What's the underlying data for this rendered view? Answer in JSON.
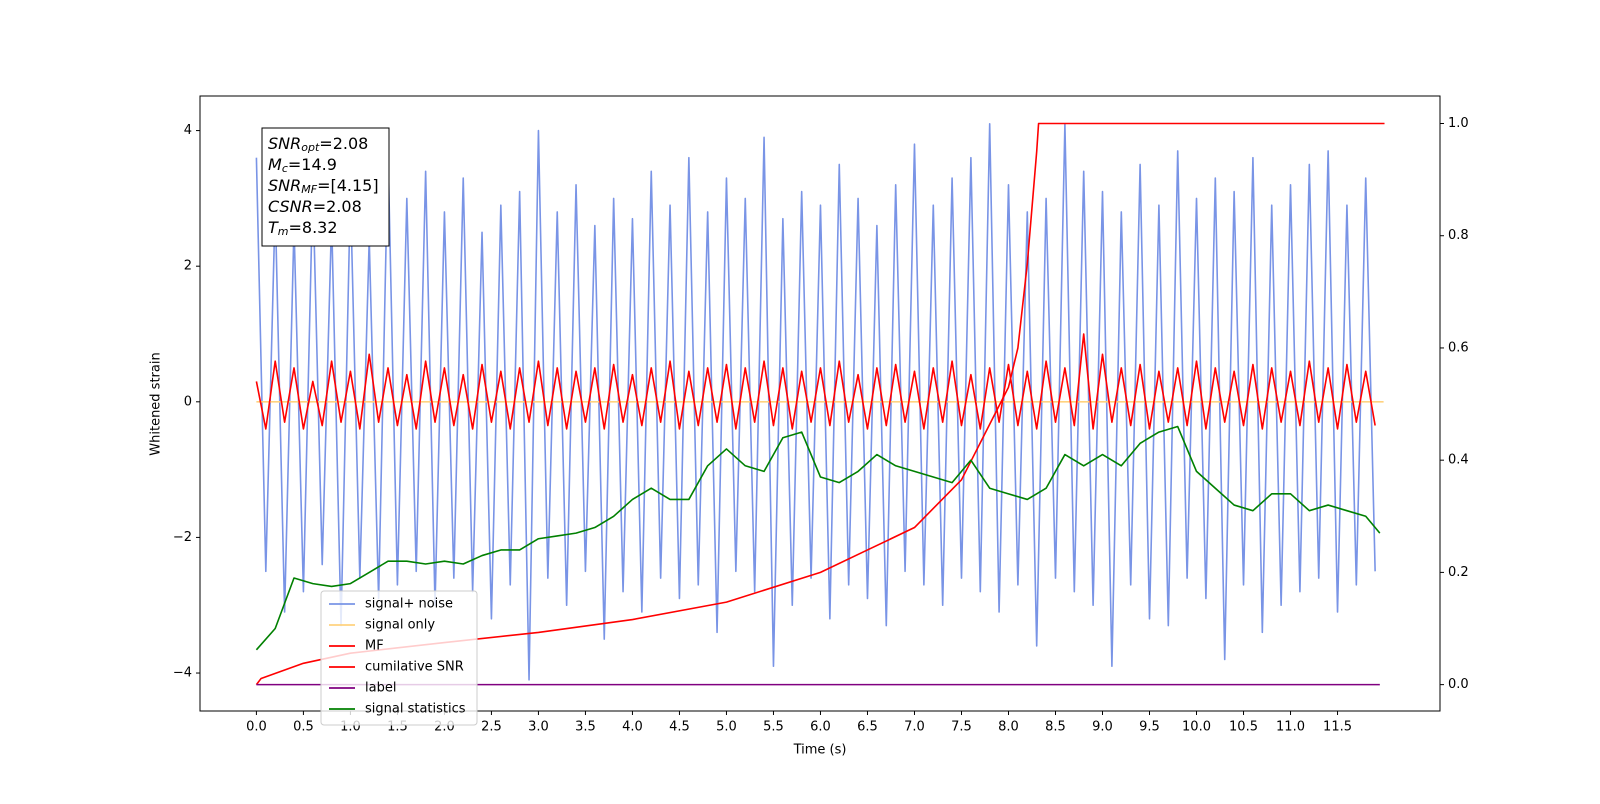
{
  "chart_data": {
    "type": "line",
    "xlabel": "Time (s)",
    "ylabel": "Whitened strain",
    "xlim": [
      -0.6,
      12.59
    ],
    "ylim": [
      -4.56,
      4.51
    ],
    "y2lim": [
      -0.047,
      1.049
    ],
    "xticks": [
      {
        "value": 0,
        "label": "0.0"
      },
      {
        "value": 0.5,
        "label": "0.5"
      },
      {
        "value": 1,
        "label": "1.0"
      },
      {
        "value": 1.5,
        "label": "1.5"
      },
      {
        "value": 2,
        "label": "2.0"
      },
      {
        "value": 2.5,
        "label": "2.5"
      },
      {
        "value": 3,
        "label": "3.0"
      },
      {
        "value": 3.5,
        "label": "3.5"
      },
      {
        "value": 4,
        "label": "4.0"
      },
      {
        "value": 4.5,
        "label": "4.5"
      },
      {
        "value": 5,
        "label": "5.0"
      },
      {
        "value": 5.5,
        "label": "5.5"
      },
      {
        "value": 6,
        "label": "6.0"
      },
      {
        "value": 6.5,
        "label": "6.5"
      },
      {
        "value": 7,
        "label": "7.0"
      },
      {
        "value": 7.5,
        "label": "7.5"
      },
      {
        "value": 8,
        "label": "8.0"
      },
      {
        "value": 8.5,
        "label": "8.5"
      },
      {
        "value": 9,
        "label": "9.0"
      },
      {
        "value": 9.5,
        "label": "9.5"
      },
      {
        "value": 10,
        "label": "10.0"
      },
      {
        "value": 10.5,
        "label": "10.5"
      },
      {
        "value": 11,
        "label": "11.0"
      },
      {
        "value": 11.5,
        "label": "11.5"
      }
    ],
    "yticks": [
      {
        "value": -4,
        "label": "−4"
      },
      {
        "value": -2,
        "label": "−2"
      },
      0,
      2,
      4
    ],
    "y2ticks": [
      {
        "value": 0,
        "label": "0.0"
      },
      {
        "value": 0.2,
        "label": "0.2"
      },
      {
        "value": 0.4,
        "label": "0.4"
      },
      {
        "value": 0.6,
        "label": "0.6"
      },
      {
        "value": 0.8,
        "label": "0.8"
      },
      {
        "value": 1,
        "label": "1.0"
      }
    ],
    "legend": "lower left",
    "annotation": [
      {
        "symbol": "SNR",
        "sub": "opt",
        "text": "=2.08"
      },
      {
        "symbol": "M",
        "sub": "c",
        "text": "=14.9"
      },
      {
        "symbol": "SNR",
        "sub": "MF",
        "text": "=[4.15]"
      },
      {
        "symbol": "CSNR",
        "text": "=2.08"
      },
      {
        "symbol": "T",
        "sub": "m",
        "text": "=8.32"
      }
    ],
    "x": [
      0,
      0.1,
      0.2,
      0.3,
      0.4,
      0.5,
      0.6,
      0.7,
      0.8,
      0.9,
      1,
      1.1,
      1.2,
      1.3,
      1.4,
      1.5,
      1.6,
      1.7,
      1.8,
      1.9,
      2,
      2.1,
      2.2,
      2.3,
      2.4,
      2.5,
      2.6,
      2.7,
      2.8,
      2.9,
      3,
      3.1,
      3.2,
      3.3,
      3.4,
      3.5,
      3.6,
      3.7,
      3.8,
      3.9,
      4,
      4.1,
      4.2,
      4.3,
      4.4,
      4.5,
      4.6,
      4.7,
      4.8,
      4.9,
      5,
      5.1,
      5.2,
      5.3,
      5.4,
      5.5,
      5.6,
      5.7,
      5.8,
      5.9,
      6,
      6.1,
      6.2,
      6.3,
      6.4,
      6.5,
      6.6,
      6.7,
      6.8,
      6.9,
      7,
      7.1,
      7.2,
      7.3,
      7.4,
      7.5,
      7.6,
      7.7,
      7.8,
      7.9,
      8,
      8.1,
      8.2,
      8.3,
      8.4,
      8.5,
      8.6,
      8.7,
      8.8,
      8.9,
      9,
      9.1,
      9.2,
      9.3,
      9.4,
      9.5,
      9.6,
      9.7,
      9.8,
      9.9,
      10,
      10.1,
      10.2,
      10.3,
      10.4,
      10.5,
      10.6,
      10.7,
      10.8,
      10.9,
      11,
      11.1,
      11.2,
      11.3,
      11.4,
      11.5,
      11.6,
      11.7,
      11.8,
      11.9
    ],
    "series": [
      {
        "name": "signal+ noise",
        "color": "#7994e6",
        "values": [
          3.6,
          -2.5,
          2.9,
          -3.1,
          2.6,
          -2.8,
          3.2,
          -2.4,
          2.7,
          -3.3,
          3.1,
          -2.6,
          2.4,
          -2.9,
          3.7,
          -2.7,
          3.0,
          -2.5,
          3.4,
          -3.0,
          2.8,
          -2.6,
          3.3,
          -2.8,
          2.5,
          -3.2,
          2.9,
          -2.7,
          3.1,
          -4.1,
          4.0,
          -2.6,
          2.8,
          -3.0,
          3.2,
          -2.5,
          2.6,
          -3.5,
          3.0,
          -2.8,
          2.7,
          -3.1,
          3.4,
          -2.6,
          2.9,
          -2.9,
          3.6,
          -2.7,
          2.8,
          -3.4,
          3.3,
          -2.5,
          3.0,
          -2.8,
          3.9,
          -3.9,
          2.7,
          -3.0,
          3.1,
          -2.6,
          2.9,
          -3.2,
          3.5,
          -2.7,
          3.0,
          -2.9,
          2.6,
          -3.3,
          3.2,
          -2.5,
          3.8,
          -2.7,
          2.9,
          -3.0,
          3.3,
          -2.6,
          3.6,
          -2.8,
          4.1,
          -3.1,
          3.2,
          -2.7,
          2.8,
          -3.6,
          3.0,
          -2.6,
          4.1,
          -2.8,
          3.4,
          -3.0,
          3.1,
          -3.9,
          2.8,
          -2.7,
          3.5,
          -3.2,
          2.9,
          -3.3,
          3.7,
          -2.6,
          3.0,
          -2.9,
          3.3,
          -3.8,
          3.1,
          -2.7,
          3.6,
          -3.4,
          2.9,
          -3.0,
          3.2,
          -2.8,
          3.5,
          -2.6,
          3.7,
          -3.1,
          2.9,
          -2.7,
          3.3,
          -2.5
        ]
      },
      {
        "name": "signal only",
        "color": "#ffd27f",
        "x": [
          0,
          11.99
        ],
        "values": [
          0,
          0
        ]
      },
      {
        "name": "MF",
        "color": "#ff0000",
        "values": [
          0.3,
          -0.4,
          0.6,
          -0.3,
          0.5,
          -0.4,
          0.3,
          -0.35,
          0.6,
          -0.3,
          0.45,
          -0.4,
          0.7,
          -0.3,
          0.5,
          -0.35,
          0.4,
          -0.4,
          0.6,
          -0.3,
          0.5,
          -0.35,
          0.4,
          -0.4,
          0.55,
          -0.3,
          0.45,
          -0.4,
          0.5,
          -0.3,
          0.6,
          -0.35,
          0.5,
          -0.4,
          0.45,
          -0.3,
          0.5,
          -0.4,
          0.55,
          -0.3,
          0.4,
          -0.35,
          0.5,
          -0.3,
          0.6,
          -0.4,
          0.45,
          -0.35,
          0.5,
          -0.3,
          0.55,
          -0.4,
          0.5,
          -0.3,
          0.6,
          -0.35,
          0.5,
          -0.4,
          0.45,
          -0.3,
          0.5,
          -0.35,
          0.6,
          -0.3,
          0.4,
          -0.4,
          0.5,
          -0.35,
          0.55,
          -0.3,
          0.45,
          -0.4,
          0.5,
          -0.3,
          0.6,
          -0.35,
          0.4,
          -0.4,
          0.5,
          -0.3,
          0.55,
          -0.35,
          0.45,
          -0.4,
          0.6,
          -0.3,
          0.5,
          -0.35,
          1.0,
          -0.4,
          0.7,
          -0.3,
          0.5,
          -0.35,
          0.55,
          -0.4,
          0.45,
          -0.3,
          0.5,
          -0.35,
          0.6,
          -0.4,
          0.5,
          -0.3,
          0.45,
          -0.35,
          0.55,
          -0.4,
          0.5,
          -0.3,
          0.45,
          -0.35,
          0.6,
          -0.3,
          0.5,
          -0.4,
          0.55,
          -0.3,
          0.45,
          -0.35
        ]
      },
      {
        "name": "cumilative SNR",
        "color": "#ff0000",
        "axis": "y2",
        "x": [
          0,
          0.05,
          0.5,
          1,
          2,
          3,
          4,
          5,
          6,
          6.5,
          7,
          7.5,
          8,
          8.1,
          8.2,
          8.3,
          8.32,
          12
        ],
        "values": [
          0,
          0.011,
          0.038,
          0.056,
          0.075,
          0.093,
          0.116,
          0.147,
          0.2,
          0.24,
          0.28,
          0.365,
          0.53,
          0.6,
          0.75,
          0.95,
          1,
          1
        ]
      },
      {
        "name": "label",
        "color": "#800080",
        "axis": "y2",
        "x": [
          0,
          11.95
        ],
        "values": [
          0,
          0
        ]
      },
      {
        "name": "signal statistics",
        "color": "#008000",
        "axis": "y2",
        "x": [
          0,
          0.2,
          0.4,
          0.6,
          0.8,
          1,
          1.2,
          1.4,
          1.6,
          1.8,
          2,
          2.2,
          2.4,
          2.6,
          2.8,
          3,
          3.2,
          3.4,
          3.6,
          3.8,
          4,
          4.2,
          4.4,
          4.6,
          4.8,
          5,
          5.2,
          5.4,
          5.6,
          5.8,
          6,
          6.2,
          6.4,
          6.6,
          6.8,
          7,
          7.2,
          7.4,
          7.6,
          7.8,
          8,
          8.2,
          8.4,
          8.6,
          8.8,
          9,
          9.2,
          9.4,
          9.6,
          9.8,
          10,
          10.2,
          10.4,
          10.6,
          10.8,
          11,
          11.2,
          11.4,
          11.6,
          11.8,
          11.95
        ],
        "values": [
          0.062,
          0.1,
          0.19,
          0.18,
          0.175,
          0.18,
          0.2,
          0.22,
          0.22,
          0.215,
          0.22,
          0.215,
          0.23,
          0.24,
          0.24,
          0.26,
          0.265,
          0.27,
          0.28,
          0.3,
          0.33,
          0.35,
          0.33,
          0.33,
          0.39,
          0.42,
          0.39,
          0.38,
          0.44,
          0.45,
          0.37,
          0.36,
          0.38,
          0.41,
          0.39,
          0.38,
          0.37,
          0.36,
          0.4,
          0.35,
          0.34,
          0.33,
          0.35,
          0.41,
          0.39,
          0.41,
          0.39,
          0.43,
          0.45,
          0.46,
          0.38,
          0.35,
          0.32,
          0.31,
          0.34,
          0.34,
          0.31,
          0.32,
          0.31,
          0.3,
          0.27
        ]
      }
    ]
  }
}
